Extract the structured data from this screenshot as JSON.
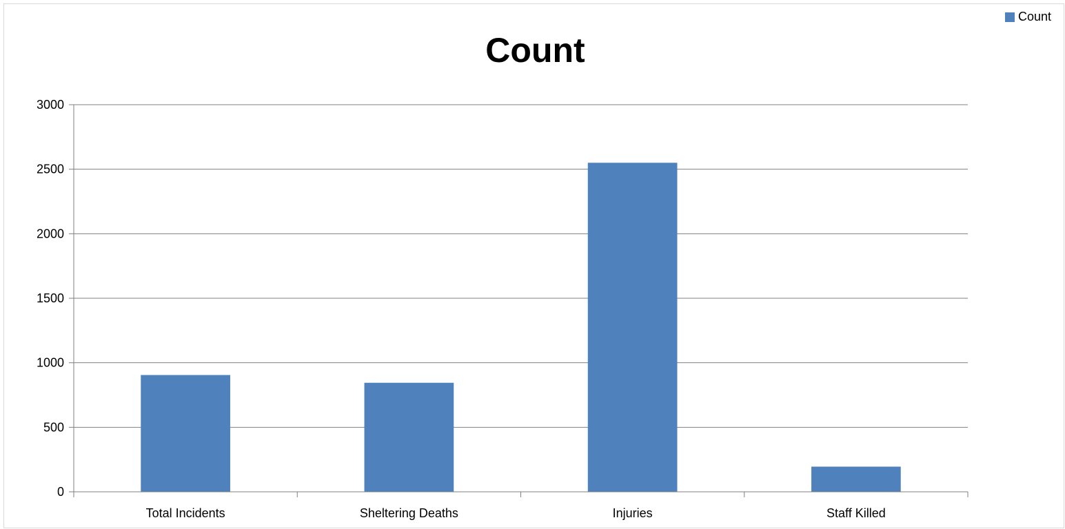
{
  "chart_data": {
    "type": "bar",
    "title": "Count",
    "xlabel": "",
    "ylabel": "",
    "categories": [
      "Total Incidents",
      "Sheltering Deaths",
      "Injuries",
      "Staff Killed"
    ],
    "series": [
      {
        "name": "Count",
        "values": [
          905,
          845,
          2550,
          195
        ],
        "color": "#4f81bd"
      }
    ],
    "ylim": [
      0,
      3000
    ],
    "yticks": [
      "0",
      "500",
      "1000",
      "1500",
      "2000",
      "2500",
      "3000"
    ],
    "grid": true,
    "legend_position": "top-right"
  },
  "colors": {
    "bar": "#4f81bd",
    "gridline": "#7f7f7f",
    "axis": "#7f7f7f"
  }
}
